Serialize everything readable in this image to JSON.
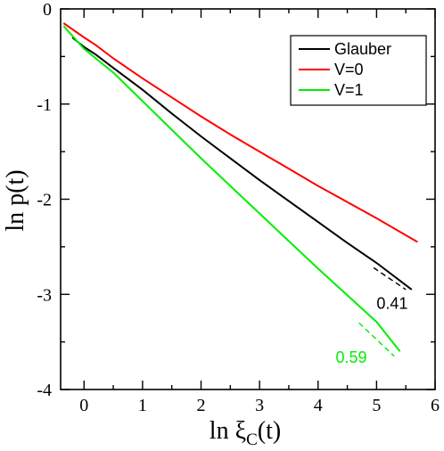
{
  "chart_data": {
    "type": "line",
    "xlabel": "ln ξ",
    "xlabel_sub": "C",
    "xlabel_suffix": "(t)",
    "ylabel": "ln p(t)",
    "xlim": [
      -0.4,
      6.0
    ],
    "ylim": [
      -4,
      0
    ],
    "x_ticks": [
      0,
      1,
      2,
      3,
      4,
      5,
      6
    ],
    "y_ticks": [
      0,
      -1,
      -2,
      -3,
      -4
    ],
    "grid": false,
    "legend_position": "top-right",
    "series": [
      {
        "name": "Glauber",
        "color": "#000000",
        "x": [
          -0.2,
          0.0,
          0.2,
          0.5,
          1.0,
          1.5,
          2.0,
          2.5,
          3.0,
          3.5,
          4.0,
          4.5,
          5.0,
          5.6
        ],
        "y": [
          -0.3,
          -0.4,
          -0.48,
          -0.62,
          -0.85,
          -1.1,
          -1.34,
          -1.57,
          -1.8,
          -2.02,
          -2.24,
          -2.46,
          -2.67,
          -2.95
        ]
      },
      {
        "name": "V=0",
        "color": "#ff0000",
        "x": [
          -0.35,
          0.0,
          0.2,
          0.5,
          1.0,
          1.5,
          2.0,
          2.5,
          3.0,
          3.5,
          4.0,
          4.5,
          5.0,
          5.7
        ],
        "y": [
          -0.15,
          -0.3,
          -0.38,
          -0.52,
          -0.73,
          -0.93,
          -1.13,
          -1.32,
          -1.5,
          -1.68,
          -1.86,
          -2.03,
          -2.2,
          -2.45
        ]
      },
      {
        "name": "V=1",
        "color": "#00ee00",
        "x": [
          -0.35,
          0.0,
          0.2,
          0.5,
          1.0,
          1.5,
          2.0,
          2.5,
          3.0,
          3.5,
          4.0,
          4.5,
          5.0,
          5.4
        ],
        "y": [
          -0.18,
          -0.42,
          -0.52,
          -0.67,
          -0.97,
          -1.27,
          -1.57,
          -1.86,
          -2.15,
          -2.44,
          -2.73,
          -3.01,
          -3.29,
          -3.6
        ]
      }
    ],
    "slope_guides": [
      {
        "color": "#000000",
        "x": [
          4.95,
          5.5
        ],
        "y": [
          -2.72,
          -2.95
        ]
      },
      {
        "color": "#00ee00",
        "x": [
          4.7,
          5.3
        ],
        "y": [
          -3.3,
          -3.65
        ]
      }
    ],
    "annotations": [
      {
        "text": "0.41",
        "color": "#000000",
        "x": 5.0,
        "y": -3.15
      },
      {
        "text": "0.59",
        "color": "#00ee00",
        "x": 4.3,
        "y": -3.72
      }
    ]
  }
}
